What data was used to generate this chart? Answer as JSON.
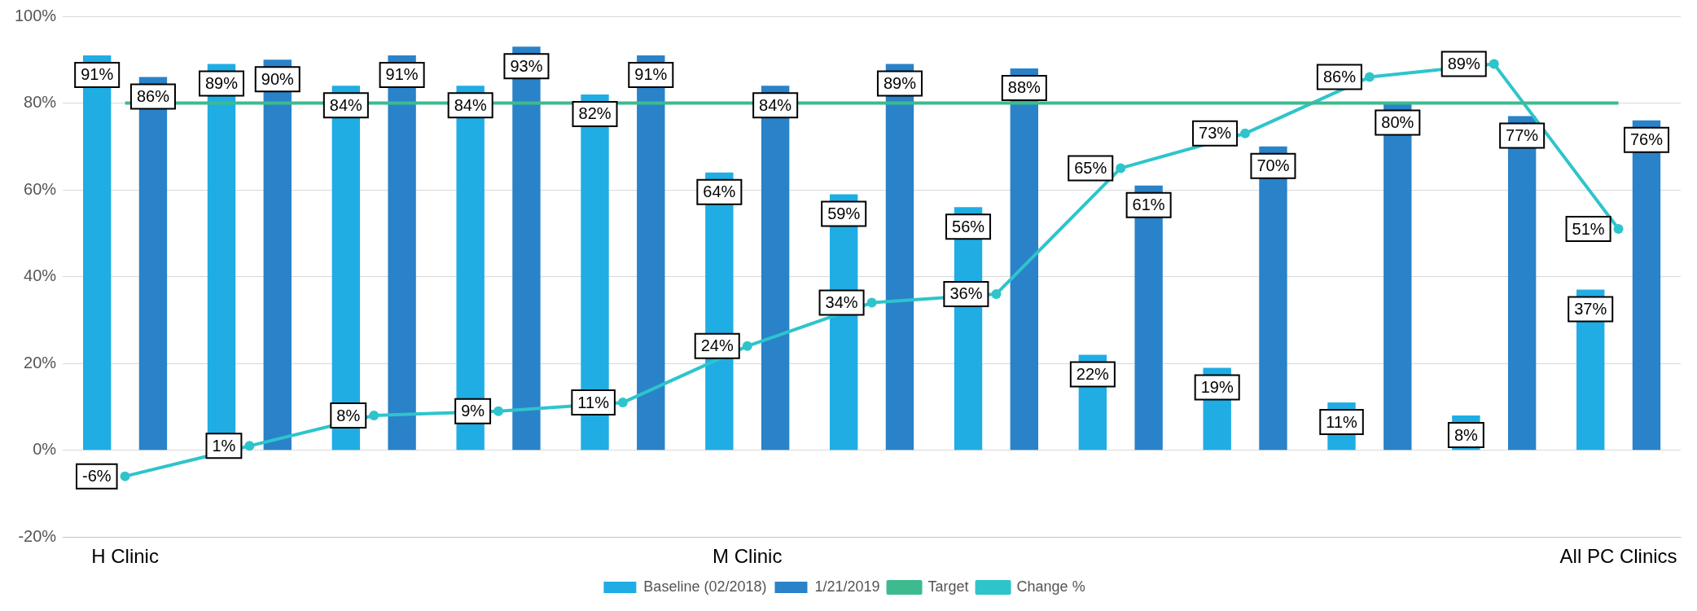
{
  "chart_data": {
    "type": "bar",
    "categories": [
      "H Clinic",
      null,
      null,
      null,
      null,
      "M Clinic",
      null,
      null,
      null,
      null,
      null,
      null,
      "All PC Clinics"
    ],
    "series": [
      {
        "name": "Baseline (02/2018)",
        "color": "#1fade4",
        "values": [
          91,
          89,
          84,
          84,
          82,
          64,
          59,
          56,
          22,
          19,
          11,
          8,
          37
        ],
        "value_labels": [
          "91%",
          "89%",
          "84%",
          "84%",
          "82%",
          "64%",
          "59%",
          "56%",
          "22%",
          "19%",
          "11%",
          "8%",
          "37%"
        ]
      },
      {
        "name": "1/21/2019",
        "color": "#2a82c9",
        "values": [
          86,
          90,
          91,
          93,
          91,
          84,
          89,
          88,
          61,
          70,
          80,
          77,
          76
        ],
        "value_labels": [
          "86%",
          "90%",
          "91%",
          "93%",
          "91%",
          "84%",
          "89%",
          "88%",
          "61%",
          "70%",
          "80%",
          "77%",
          "76%"
        ]
      },
      {
        "name": "Target",
        "type": "line",
        "color": "#3dbb8e",
        "marker": "none",
        "values": [
          80,
          80,
          80,
          80,
          80,
          80,
          80,
          80,
          80,
          80,
          80,
          80,
          80
        ]
      },
      {
        "name": "Change %",
        "type": "line",
        "color": "#2ec4cc",
        "marker": "circle",
        "values": [
          -6,
          1,
          8,
          9,
          11,
          24,
          34,
          36,
          65,
          73,
          86,
          89,
          51
        ],
        "value_labels": [
          "-6%",
          "1%",
          "8%",
          "9%",
          "11%",
          "24%",
          "34%",
          "36%",
          "65%",
          "73%",
          "86%",
          "89%",
          "51%"
        ]
      }
    ],
    "ylim": [
      -20,
      100
    ],
    "yticks": [
      {
        "value": -20,
        "label": "-20%"
      },
      {
        "value": 0,
        "label": "0%"
      },
      {
        "value": 20,
        "label": "20%"
      },
      {
        "value": 40,
        "label": "40%"
      },
      {
        "value": 60,
        "label": "60%"
      },
      {
        "value": 80,
        "label": "80%"
      },
      {
        "value": 100,
        "label": "100%"
      }
    ],
    "grid": "y",
    "legend": "bottom"
  }
}
